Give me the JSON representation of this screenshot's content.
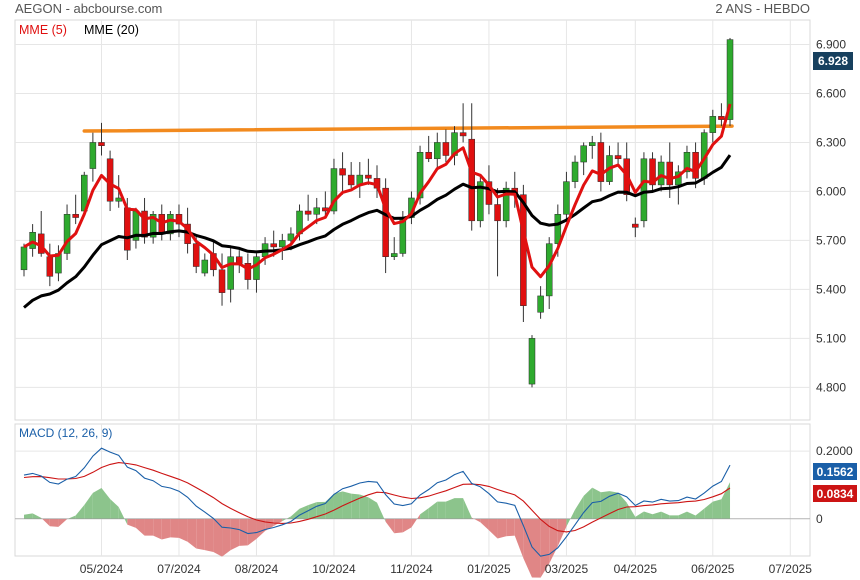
{
  "header": {
    "title": "AEGON - abcbourse.com",
    "period": "2 ANS - HEBDO"
  },
  "chart_data": [
    {
      "type": "candlestick",
      "legend": [
        {
          "name": "MME (5)",
          "color": "#e01010"
        },
        {
          "name": "MME (20)",
          "color": "#000000"
        }
      ],
      "ylim": [
        4.6,
        7.05
      ],
      "yticks": [
        "6.900",
        "6.600",
        "6.300",
        "6.000",
        "5.700",
        "5.400",
        "5.100",
        "4.800"
      ],
      "last_price": "6.928",
      "last_price_color": "#17405e",
      "resistance_line": {
        "color": "#f28a1e",
        "from": 6.37,
        "to": 6.4
      },
      "up_color": "#2eaa2e",
      "down_color": "#e01010",
      "candles": [
        [
          5.52,
          5.68,
          5.48,
          5.66
        ],
        [
          5.65,
          5.8,
          5.6,
          5.75
        ],
        [
          5.74,
          5.88,
          5.6,
          5.62
        ],
        [
          5.6,
          5.68,
          5.42,
          5.48
        ],
        [
          5.5,
          5.67,
          5.45,
          5.62
        ],
        [
          5.62,
          5.92,
          5.58,
          5.86
        ],
        [
          5.86,
          5.98,
          5.8,
          5.84
        ],
        [
          5.88,
          6.12,
          5.85,
          6.1
        ],
        [
          6.14,
          6.36,
          6.06,
          6.3
        ],
        [
          6.3,
          6.42,
          6.22,
          6.28
        ],
        [
          6.2,
          6.25,
          5.88,
          5.94
        ],
        [
          5.94,
          6.1,
          5.9,
          5.96
        ],
        [
          5.9,
          5.96,
          5.58,
          5.64
        ],
        [
          5.7,
          5.9,
          5.65,
          5.88
        ],
        [
          5.88,
          5.96,
          5.68,
          5.72
        ],
        [
          5.72,
          5.88,
          5.68,
          5.86
        ],
        [
          5.86,
          5.92,
          5.7,
          5.74
        ],
        [
          5.74,
          5.88,
          5.7,
          5.86
        ],
        [
          5.86,
          5.92,
          5.72,
          5.8
        ],
        [
          5.8,
          5.9,
          5.62,
          5.68
        ],
        [
          5.68,
          5.72,
          5.5,
          5.54
        ],
        [
          5.5,
          5.62,
          5.48,
          5.58
        ],
        [
          5.62,
          5.7,
          5.48,
          5.52
        ],
        [
          5.52,
          5.62,
          5.3,
          5.38
        ],
        [
          5.4,
          5.66,
          5.32,
          5.6
        ],
        [
          5.6,
          5.64,
          5.5,
          5.56
        ],
        [
          5.56,
          5.62,
          5.4,
          5.46
        ],
        [
          5.46,
          5.62,
          5.38,
          5.6
        ],
        [
          5.6,
          5.72,
          5.55,
          5.68
        ],
        [
          5.68,
          5.76,
          5.6,
          5.66
        ],
        [
          5.66,
          5.74,
          5.58,
          5.7
        ],
        [
          5.7,
          5.78,
          5.64,
          5.74
        ],
        [
          5.74,
          5.92,
          5.7,
          5.88
        ],
        [
          5.88,
          5.98,
          5.82,
          5.86
        ],
        [
          5.86,
          5.96,
          5.8,
          5.9
        ],
        [
          5.9,
          6.0,
          5.84,
          5.88
        ],
        [
          5.88,
          6.2,
          5.86,
          6.14
        ],
        [
          6.14,
          6.24,
          5.98,
          6.1
        ],
        [
          6.1,
          6.18,
          6.02,
          6.04
        ],
        [
          6.04,
          6.18,
          5.96,
          6.1
        ],
        [
          6.1,
          6.2,
          6.04,
          6.08
        ],
        [
          6.08,
          6.16,
          5.96,
          6.02
        ],
        [
          6.02,
          6.08,
          5.5,
          5.6
        ],
        [
          5.6,
          5.72,
          5.58,
          5.62
        ],
        [
          5.62,
          5.88,
          5.6,
          5.84
        ],
        [
          5.84,
          6.0,
          5.8,
          5.96
        ],
        [
          5.96,
          6.28,
          5.92,
          6.24
        ],
        [
          6.24,
          6.34,
          6.18,
          6.2
        ],
        [
          6.2,
          6.36,
          6.14,
          6.3
        ],
        [
          6.3,
          6.38,
          6.18,
          6.22
        ],
        [
          6.22,
          6.4,
          6.16,
          6.36
        ],
        [
          6.36,
          6.54,
          6.3,
          6.34
        ],
        [
          6.32,
          6.54,
          5.76,
          5.82
        ],
        [
          5.82,
          6.1,
          5.78,
          6.06
        ],
        [
          6.06,
          6.16,
          5.86,
          5.92
        ],
        [
          5.92,
          6.02,
          5.48,
          5.82
        ],
        [
          5.82,
          6.06,
          5.78,
          6.02
        ],
        [
          6.02,
          6.12,
          5.9,
          5.98
        ],
        [
          5.98,
          6.04,
          5.2,
          5.3
        ],
        [
          4.82,
          5.12,
          4.8,
          5.1
        ],
        [
          5.26,
          5.42,
          5.22,
          5.36
        ],
        [
          5.36,
          5.72,
          5.28,
          5.68
        ],
        [
          5.68,
          5.92,
          5.6,
          5.86
        ],
        [
          5.86,
          6.12,
          5.82,
          6.06
        ],
        [
          6.06,
          6.22,
          6.02,
          6.18
        ],
        [
          6.18,
          6.3,
          6.1,
          6.28
        ],
        [
          6.28,
          6.34,
          6.2,
          6.3
        ],
        [
          6.3,
          6.36,
          6.0,
          6.06
        ],
        [
          6.06,
          6.28,
          6.04,
          6.22
        ],
        [
          6.22,
          6.3,
          6.16,
          6.2
        ],
        [
          6.2,
          6.3,
          5.94,
          5.98
        ],
        [
          5.8,
          5.84,
          5.72,
          5.78
        ],
        [
          5.82,
          6.24,
          5.78,
          6.2
        ],
        [
          6.2,
          6.24,
          6.0,
          6.04
        ],
        [
          6.04,
          6.22,
          6.0,
          6.18
        ],
        [
          6.18,
          6.3,
          5.96,
          6.04
        ],
        [
          6.04,
          6.16,
          5.92,
          6.12
        ],
        [
          6.12,
          6.28,
          6.08,
          6.24
        ],
        [
          6.24,
          6.3,
          6.02,
          6.08
        ],
        [
          6.08,
          6.38,
          6.04,
          6.36
        ],
        [
          6.36,
          6.5,
          6.3,
          6.46
        ],
        [
          6.46,
          6.54,
          6.4,
          6.44
        ],
        [
          6.44,
          6.94,
          6.4,
          6.93
        ]
      ],
      "xticks": [
        {
          "label": "05/2024",
          "idx": 9
        },
        {
          "label": "07/2024",
          "idx": 18
        },
        {
          "label": "08/2024",
          "idx": 27
        },
        {
          "label": "10/2024",
          "idx": 36
        },
        {
          "label": "11/2024",
          "idx": 45
        },
        {
          "label": "01/2025",
          "idx": 54
        },
        {
          "label": "03/2025",
          "idx": 63
        },
        {
          "label": "04/2025",
          "idx": 71
        },
        {
          "label": "06/2025",
          "idx": 80
        },
        {
          "label": "07/2025",
          "idx": 89
        }
      ]
    },
    {
      "type": "macd",
      "title": "MACD (12, 26, 9)",
      "ylim": [
        -0.11,
        0.28
      ],
      "yticks": [
        "0.2000",
        "0"
      ],
      "labels": [
        {
          "name": "0.1562",
          "color": "#1a5fa8"
        },
        {
          "name": "0.0834",
          "color": "#cc1414"
        }
      ],
      "macd_color": "#1a5fa8",
      "signal_color": "#cc1414",
      "hist_pos_color": "#8cc48c",
      "hist_neg_color": "#e08686"
    }
  ]
}
